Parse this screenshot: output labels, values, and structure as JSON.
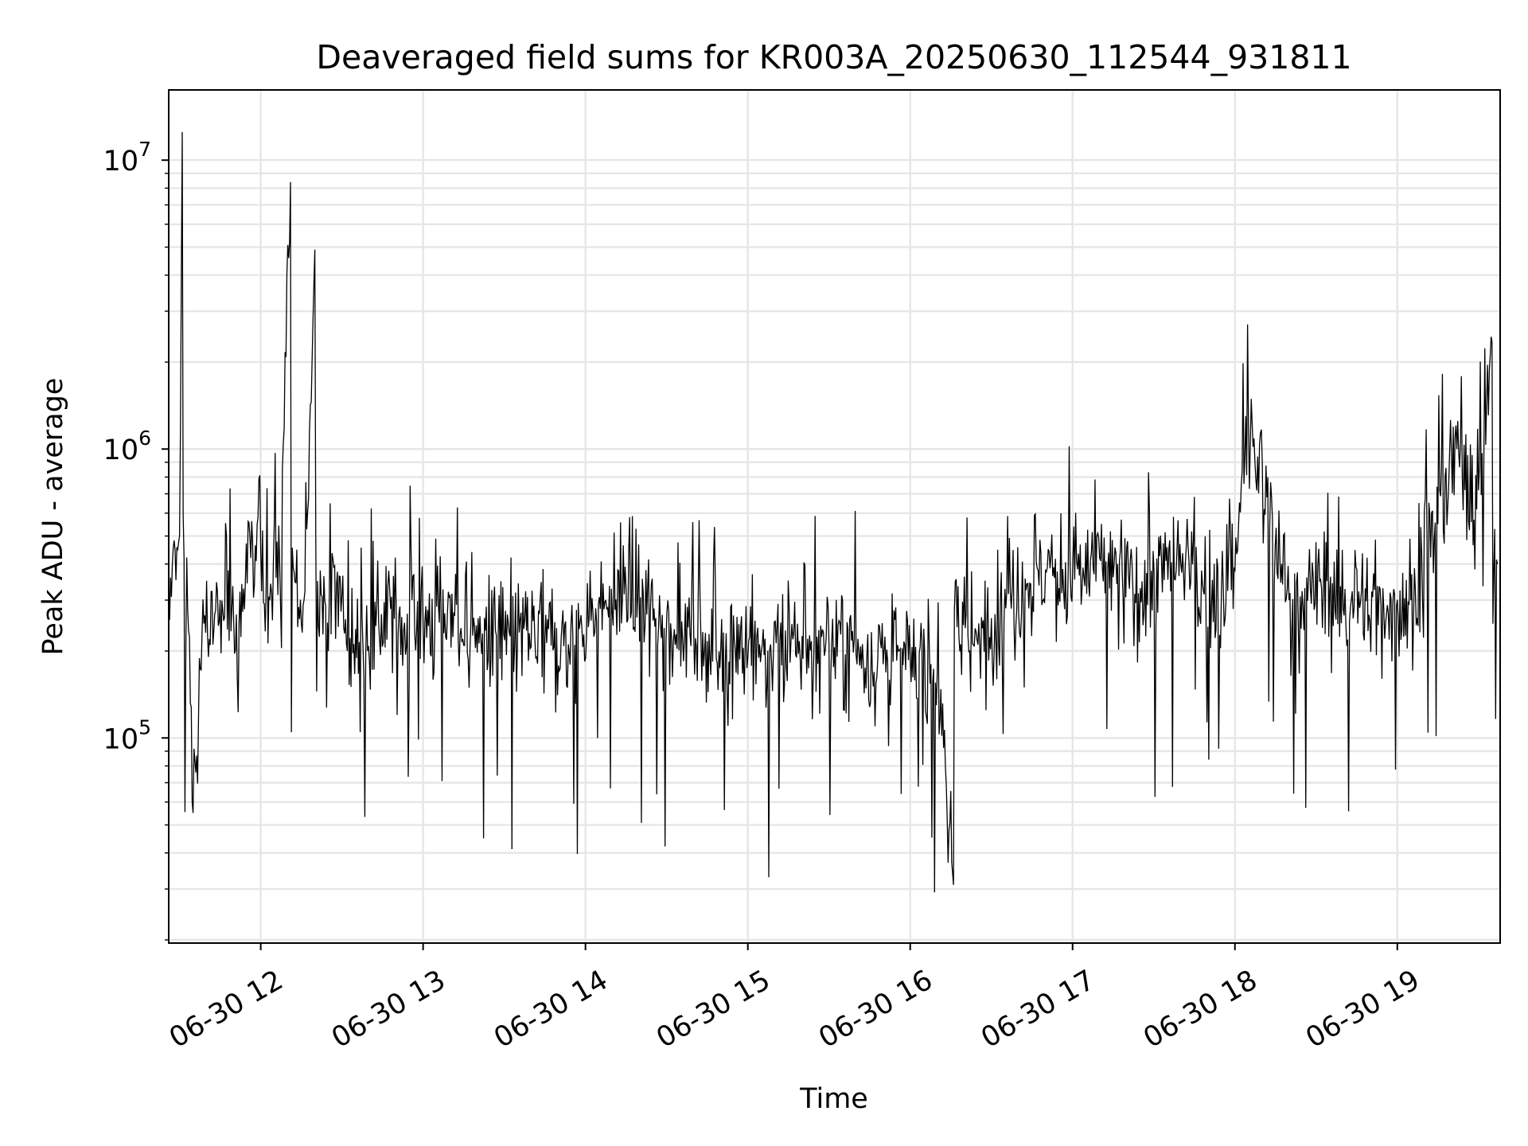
{
  "chart_data": {
    "type": "line",
    "title": "Deaveraged field sums for KR003A_20250630_112544_931811",
    "xlabel": "Time",
    "ylabel": "Peak ADU - average",
    "yscale": "log",
    "ylim": [
      19500,
      17500000
    ],
    "xlim": [
      "2025-06-30T11:26:00",
      "2025-06-30T19:38:00"
    ],
    "grid": true,
    "line_color": "#000000",
    "grid_color": "#e6e6e6",
    "x_ticks": [
      {
        "value": "2025-06-30T12:00:00",
        "label": "06-30 12"
      },
      {
        "value": "2025-06-30T13:00:00",
        "label": "06-30 13"
      },
      {
        "value": "2025-06-30T14:00:00",
        "label": "06-30 14"
      },
      {
        "value": "2025-06-30T15:00:00",
        "label": "06-30 15"
      },
      {
        "value": "2025-06-30T16:00:00",
        "label": "06-30 16"
      },
      {
        "value": "2025-06-30T17:00:00",
        "label": "06-30 17"
      },
      {
        "value": "2025-06-30T18:00:00",
        "label": "06-30 18"
      },
      {
        "value": "2025-06-30T19:00:00",
        "label": "06-30 19"
      }
    ],
    "y_ticks": [
      {
        "value": 100000,
        "base": "10",
        "exp": "5"
      },
      {
        "value": 1000000,
        "base": "10",
        "exp": "6"
      },
      {
        "value": 10000000,
        "base": "10",
        "exp": "7"
      }
    ],
    "series": [
      {
        "x": [
          "2025-06-30T11:26:00",
          "2025-06-30T11:30:00",
          "2025-06-30T11:31:00",
          "2025-06-30T11:33:00",
          "2025-06-30T11:35:00",
          "2025-06-30T11:40:00",
          "2025-06-30T11:41:00",
          "2025-06-30T11:45:00",
          "2025-06-30T11:52:00",
          "2025-06-30T11:57:00",
          "2025-06-30T12:04:00",
          "2025-06-30T12:07:00",
          "2025-06-30T12:11:00",
          "2025-06-30T12:15:00",
          "2025-06-30T12:16:00",
          "2025-06-30T12:20:00",
          "2025-06-30T12:30:00",
          "2025-06-30T12:32:00",
          "2025-06-30T12:48:00",
          "2025-06-30T13:00:00",
          "2025-06-30T13:08:00",
          "2025-06-30T13:14:00",
          "2025-06-30T13:22:00",
          "2025-06-30T13:45:00",
          "2025-06-30T13:56:00",
          "2025-06-30T13:58:00",
          "2025-06-30T14:15:00",
          "2025-06-30T14:26:00",
          "2025-06-30T14:40:00",
          "2025-06-30T14:44:00",
          "2025-06-30T14:55:00",
          "2025-06-30T15:05:00",
          "2025-06-30T15:18:00",
          "2025-06-30T15:30:00",
          "2025-06-30T15:41:00",
          "2025-06-30T15:50:00",
          "2025-06-30T16:00:00",
          "2025-06-30T16:10:00",
          "2025-06-30T16:16:00",
          "2025-06-30T16:22:00",
          "2025-06-30T16:30:00",
          "2025-06-30T16:37:00",
          "2025-06-30T16:50:00",
          "2025-06-30T16:55:00",
          "2025-06-30T17:10:00",
          "2025-06-30T17:15:00",
          "2025-06-30T17:25:00",
          "2025-06-30T17:40:00",
          "2025-06-30T17:46:00",
          "2025-06-30T17:55:00",
          "2025-06-30T18:00:00",
          "2025-06-30T18:05:00",
          "2025-06-30T18:20:00",
          "2025-06-30T18:32:00",
          "2025-06-30T18:43:00",
          "2025-06-30T18:55:00",
          "2025-06-30T19:05:00",
          "2025-06-30T19:15:00",
          "2025-06-30T19:22:00",
          "2025-06-30T19:30:00",
          "2025-06-30T19:35:00",
          "2025-06-30T19:37:00"
        ],
        "y": [
          330000,
          500000,
          12500000,
          280000,
          55000,
          350000,
          220000,
          300000,
          250000,
          480000,
          320000,
          400000,
          8400000,
          250000,
          300000,
          4900000,
          310000,
          200000,
          280000,
          250000,
          270000,
          240000,
          230000,
          220000,
          210000,
          250000,
          330000,
          260000,
          230000,
          200000,
          220000,
          200000,
          190000,
          210000,
          200000,
          180000,
          190000,
          170000,
          31000,
          200000,
          260000,
          320000,
          380000,
          330000,
          420000,
          360000,
          330000,
          400000,
          350000,
          320000,
          380000,
          1230000,
          300000,
          330000,
          300000,
          280000,
          300000,
          550000,
          1000000,
          720000,
          2350000,
          400000
        ]
      }
    ]
  }
}
